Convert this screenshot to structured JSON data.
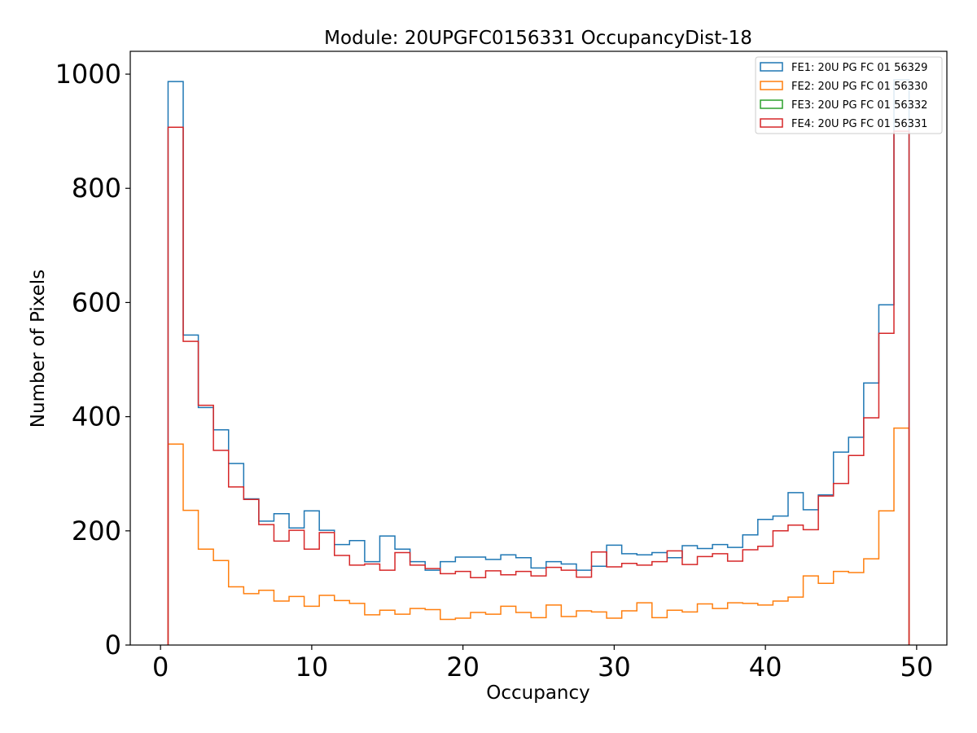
{
  "chart_data": {
    "type": "histogram-step",
    "title": "Module: 20UPGFC0156331 OccupancyDist-18",
    "xlabel": "Occupancy",
    "ylabel": "Number of Pixels",
    "xlim": [
      -2,
      52
    ],
    "ylim": [
      0,
      1040
    ],
    "xticks": [
      0,
      10,
      20,
      30,
      40,
      50
    ],
    "yticks": [
      0,
      200,
      400,
      600,
      800,
      1000
    ],
    "bin_start": 0.5,
    "bin_width": 1,
    "legend_position": "top-right",
    "series": [
      {
        "name": "FE1: 20U PG FC 01 56329",
        "color": "#1f77b4",
        "values": [
          987,
          543,
          416,
          377,
          318,
          256,
          217,
          230,
          205,
          235,
          201,
          176,
          183,
          146,
          191,
          168,
          146,
          131,
          146,
          154,
          154,
          150,
          158,
          153,
          135,
          146,
          142,
          131,
          138,
          175,
          160,
          158,
          162,
          153,
          174,
          169,
          176,
          171,
          193,
          220,
          226,
          267,
          237,
          263,
          338,
          364,
          459,
          596,
          990
        ]
      },
      {
        "name": "FE2: 20U PG FC 01 56330",
        "color": "#ff7f0e",
        "values": [
          352,
          236,
          168,
          148,
          102,
          90,
          96,
          77,
          85,
          68,
          87,
          78,
          73,
          53,
          61,
          54,
          64,
          62,
          45,
          47,
          57,
          54,
          68,
          57,
          48,
          70,
          50,
          60,
          58,
          47,
          60,
          74,
          48,
          61,
          58,
          72,
          64,
          74,
          73,
          70,
          77,
          84,
          121,
          108,
          129,
          127,
          151,
          235,
          380
        ]
      },
      {
        "name": "FE3: 20U PG FC 01 56332",
        "color": "#2ca02c",
        "values": []
      },
      {
        "name": "FE4: 20U PG FC 01 56331",
        "color": "#d62728",
        "values": [
          907,
          532,
          420,
          341,
          277,
          255,
          211,
          182,
          201,
          168,
          197,
          157,
          140,
          142,
          131,
          162,
          140,
          134,
          125,
          129,
          118,
          130,
          123,
          129,
          121,
          136,
          131,
          119,
          163,
          137,
          143,
          140,
          146,
          165,
          141,
          155,
          160,
          147,
          167,
          173,
          200,
          210,
          202,
          261,
          283,
          332,
          398,
          546,
          900
        ]
      }
    ]
  }
}
